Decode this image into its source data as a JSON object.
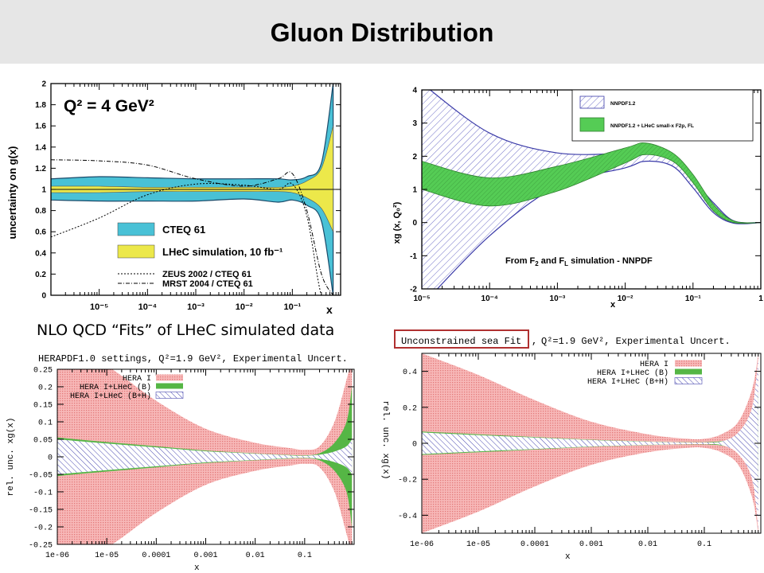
{
  "header": {
    "title": "Gluon Distribution"
  },
  "caption": "NLO QCD “Fits” of LHeC simulated data",
  "colors": {
    "cteq": "#49c1d6",
    "lhec_yellow": "#ece84a",
    "nnpdf_hatch": "#7070c8",
    "nnpdf_green": "#55cc55",
    "hera_red": "#f4a3a3",
    "hera_green": "#55b645",
    "hera_blue": "#4848b0",
    "highlight_box": "#b03030"
  },
  "chart_data": [
    {
      "type": "area",
      "title": "Q² = 4 GeV²",
      "ylabel": "uncertainty on g(x)",
      "xlabel": "x",
      "xscale": "log",
      "xlim": [
        1e-06,
        1
      ],
      "ylim": [
        0,
        2
      ],
      "x_ticks": [
        "10⁻⁵",
        "10⁻⁴",
        "10⁻³",
        "10⁻²",
        "10⁻¹"
      ],
      "y_ticks": [
        "0",
        "0.2",
        "0.4",
        "0.6",
        "0.8",
        "1",
        "1.2",
        "1.4",
        "1.6",
        "1.8",
        "2"
      ],
      "legend": [
        "CTEQ 61",
        "LHeC simulation, 10 fb⁻¹",
        "ZEUS 2002 / CTEQ 61",
        "MRST 2004 / CTEQ 61"
      ],
      "legend_position": "bottom-center",
      "x": [
        1e-06,
        1e-05,
        0.0001,
        0.001,
        0.01,
        0.05,
        0.1,
        0.2,
        0.4,
        0.7
      ],
      "series": [
        {
          "name": "CTEQ 61",
          "upper": [
            1.1,
            1.12,
            1.11,
            1.1,
            1.1,
            1.1,
            1.09,
            1.12,
            1.25,
            2.0
          ],
          "lower": [
            0.9,
            0.89,
            0.89,
            0.89,
            0.91,
            0.88,
            0.9,
            0.85,
            0.7,
            0.0
          ]
        },
        {
          "name": "LHeC simulation, 10 fb⁻¹",
          "upper": [
            1.03,
            1.03,
            1.02,
            1.02,
            1.02,
            1.02,
            1.03,
            1.08,
            1.2,
            1.6
          ],
          "lower": [
            0.97,
            0.97,
            0.98,
            0.98,
            0.98,
            0.98,
            0.97,
            0.92,
            0.82,
            0.6
          ]
        },
        {
          "name": "ZEUS 2002 / CTEQ 61",
          "values": [
            0.55,
            0.73,
            0.95,
            1.05,
            1.04,
            1.0,
            1.05,
            0.75,
            0.0,
            0.0
          ]
        },
        {
          "name": "MRST 2004 / CTEQ 61",
          "values": [
            1.28,
            1.27,
            1.23,
            1.1,
            1.03,
            1.1,
            1.15,
            0.8,
            0.2,
            0.0
          ]
        }
      ]
    },
    {
      "type": "area",
      "ylabel": "xg (x, Q₀²)",
      "xlabel": "x",
      "xscale": "log",
      "xlim": [
        1e-05,
        1
      ],
      "ylim": [
        -2,
        4
      ],
      "x_ticks": [
        "10⁻⁵",
        "10⁻⁴",
        "10⁻³",
        "10⁻²",
        "10⁻¹",
        "1"
      ],
      "y_ticks": [
        "-2",
        "-1",
        "0",
        "1",
        "2",
        "3",
        "4"
      ],
      "legend": [
        "NNPDF1.2",
        "NNPDF1.2 + LHeC small-x F2p, FL"
      ],
      "legend_position": "top-right",
      "annotation": {
        "pre": "From F",
        "sub1": "2",
        "mid": " and F",
        "sub2": "L",
        "post": " simulation - NNPDF"
      },
      "x": [
        1e-05,
        0.0001,
        0.001,
        0.01,
        0.02,
        0.05,
        0.1,
        0.2,
        0.4,
        1.0
      ],
      "series": [
        {
          "name": "NNPDF1.2",
          "upper": [
            4.2,
            2.7,
            2.1,
            2.1,
            2.2,
            1.95,
            1.3,
            0.6,
            0.05,
            0.0
          ],
          "lower": [
            -2.5,
            -0.4,
            1.1,
            1.65,
            1.85,
            1.7,
            1.05,
            0.3,
            -0.02,
            0.0
          ]
        },
        {
          "name": "NNPDF1.2 + LHeC small-x F2p, FL",
          "upper": [
            1.85,
            1.35,
            1.7,
            2.25,
            2.4,
            2.1,
            1.45,
            0.55,
            0.05,
            0.0
          ],
          "lower": [
            1.0,
            0.5,
            0.95,
            1.8,
            2.05,
            1.85,
            1.2,
            0.35,
            0.0,
            0.0
          ]
        }
      ]
    },
    {
      "type": "area",
      "title": "HERAPDF1.0 settings, Q²=1.9 GeV², Experimental Uncert.",
      "ylabel": "rel. unc. xg(x)",
      "xlabel": "x",
      "xscale": "log",
      "xlim": [
        1e-06,
        1
      ],
      "ylim": [
        -0.25,
        0.25
      ],
      "x_ticks": [
        "1e-06",
        "1e-05",
        "0.0001",
        "0.001",
        "0.01",
        "0.1"
      ],
      "y_ticks": [
        "0.25",
        "0.2",
        "0.15",
        "0.1",
        "0.05",
        "0",
        "-0.05",
        "-0.1",
        "-0.15",
        "-0.2",
        "-0.25"
      ],
      "legend": [
        "HERA I",
        "HERA I+LHeC (B)",
        "HERA I+LHeC (B+H)"
      ],
      "legend_position": "top-left",
      "x": [
        1e-06,
        1e-05,
        0.0001,
        0.001,
        0.01,
        0.05,
        0.1,
        0.2,
        0.4,
        0.7,
        0.9
      ],
      "series": [
        {
          "name": "HERA I",
          "upper": [
            0.33,
            0.26,
            0.16,
            0.08,
            0.04,
            0.025,
            0.02,
            0.03,
            0.1,
            0.22,
            0.28
          ],
          "lower": [
            -0.33,
            -0.26,
            -0.16,
            -0.08,
            -0.04,
            -0.025,
            -0.02,
            -0.03,
            -0.1,
            -0.22,
            -0.28
          ]
        },
        {
          "name": "HERA I+LHeC (B)",
          "upper": [
            0.055,
            0.042,
            0.03,
            0.018,
            0.01,
            0.005,
            0.004,
            0.01,
            0.04,
            0.1,
            0.2
          ],
          "lower": [
            -0.055,
            -0.042,
            -0.03,
            -0.018,
            -0.01,
            -0.005,
            -0.004,
            -0.01,
            -0.04,
            -0.1,
            -0.2
          ]
        },
        {
          "name": "HERA I+LHeC (B+H)",
          "upper": [
            0.05,
            0.038,
            0.027,
            0.016,
            0.009,
            0.004,
            0.003,
            0.006,
            0.015,
            0.03,
            0.05
          ],
          "lower": [
            -0.05,
            -0.038,
            -0.027,
            -0.016,
            -0.009,
            -0.004,
            -0.003,
            -0.006,
            -0.015,
            -0.03,
            -0.05
          ]
        }
      ]
    },
    {
      "type": "area",
      "title": "Unconstrained sea Fit",
      "subtitle": "Q²=1.9 GeV², Experimental Uncert.",
      "ylabel": "rel. unc. xg(x)",
      "xlabel": "x",
      "xscale": "log",
      "xlim": [
        1e-06,
        1
      ],
      "ylim": [
        -0.5,
        0.5
      ],
      "x_ticks": [
        "1e-06",
        "1e-05",
        "0.0001",
        "0.001",
        "0.01",
        "0.1"
      ],
      "y_ticks": [
        "0.4",
        "0.2",
        "0",
        "-0.2",
        "-0.4"
      ],
      "legend": [
        "HERA I",
        "HERA I+LHeC (B)",
        "HERA I+LHeC (B+H)"
      ],
      "legend_position": "top-right",
      "x": [
        1e-06,
        1e-05,
        0.0001,
        0.001,
        0.01,
        0.05,
        0.1,
        0.2,
        0.4,
        0.7,
        0.9
      ],
      "series": [
        {
          "name": "HERA I",
          "upper": [
            0.5,
            0.38,
            0.24,
            0.12,
            0.05,
            0.025,
            0.025,
            0.05,
            0.12,
            0.3,
            0.5
          ],
          "lower": [
            -0.5,
            -0.38,
            -0.24,
            -0.12,
            -0.05,
            -0.025,
            -0.025,
            -0.05,
            -0.12,
            -0.3,
            -0.5
          ]
        },
        {
          "name": "HERA I+LHeC (B)",
          "upper": [
            0.065,
            0.05,
            0.035,
            0.02,
            0.01,
            0.006,
            0.006,
            0.012,
            0.04,
            0.12,
            0.28
          ],
          "lower": [
            -0.065,
            -0.05,
            -0.035,
            -0.02,
            -0.01,
            -0.006,
            -0.006,
            -0.012,
            -0.04,
            -0.12,
            -0.28
          ]
        },
        {
          "name": "HERA I+LHeC (B+H)",
          "upper": [
            0.06,
            0.045,
            0.032,
            0.018,
            0.009,
            0.005,
            0.005,
            0.01,
            0.06,
            0.2,
            0.48
          ],
          "lower": [
            -0.06,
            -0.045,
            -0.032,
            -0.018,
            -0.009,
            -0.005,
            -0.005,
            -0.01,
            -0.06,
            -0.2,
            -0.48
          ]
        }
      ]
    }
  ]
}
